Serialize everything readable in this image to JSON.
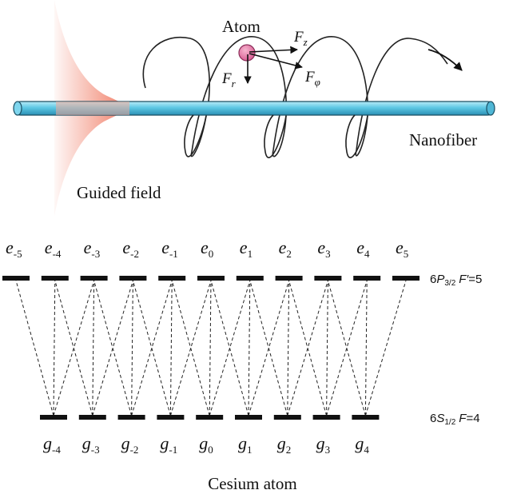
{
  "top_panel": {
    "atom_label": "Atom",
    "force_z": {
      "sym": "F",
      "sub": "z"
    },
    "force_phi": {
      "sym": "F",
      "sub": "φ"
    },
    "force_r": {
      "sym": "F",
      "sub": "r"
    },
    "nanofiber_label": "Nanofiber",
    "guided_field_label": "Guided field",
    "colors": {
      "fiber": "#5ec8e4",
      "atom": "#e0739f",
      "field": "#ee6a50",
      "helix": "#222222"
    }
  },
  "level_diagram": {
    "excited_labels": [
      {
        "sym": "e",
        "sub": "-5"
      },
      {
        "sym": "e",
        "sub": "-4"
      },
      {
        "sym": "e",
        "sub": "-3"
      },
      {
        "sym": "e",
        "sub": "-2"
      },
      {
        "sym": "e",
        "sub": "-1"
      },
      {
        "sym": "e",
        "sub": "0"
      },
      {
        "sym": "e",
        "sub": "1"
      },
      {
        "sym": "e",
        "sub": "2"
      },
      {
        "sym": "e",
        "sub": "3"
      },
      {
        "sym": "e",
        "sub": "4"
      },
      {
        "sym": "e",
        "sub": "5"
      }
    ],
    "ground_labels": [
      {
        "sym": "g",
        "sub": "-4"
      },
      {
        "sym": "g",
        "sub": "-3"
      },
      {
        "sym": "g",
        "sub": "-2"
      },
      {
        "sym": "g",
        "sub": "-1"
      },
      {
        "sym": "g",
        "sub": "0"
      },
      {
        "sym": "g",
        "sub": "1"
      },
      {
        "sym": "g",
        "sub": "2"
      },
      {
        "sym": "g",
        "sub": "3"
      },
      {
        "sym": "g",
        "sub": "4"
      }
    ],
    "excited_state": {
      "prefix": "6",
      "letter": "P",
      "sub": "3/2",
      "F": "F′",
      "value": "=5"
    },
    "ground_state": {
      "prefix": "6",
      "letter": "S",
      "sub": "1/2",
      "F": "F",
      "value": "=4"
    },
    "caption": "Cesium atom"
  }
}
